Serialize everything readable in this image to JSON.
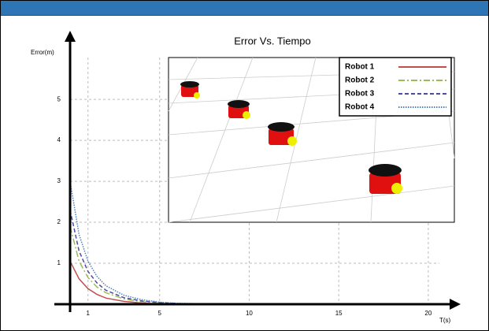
{
  "chart_data": {
    "type": "line",
    "title": "Error Vs. Tiempo",
    "y_label": "Error(m)",
    "x_label": "T(s)",
    "x": [
      0,
      0.5,
      1,
      1.5,
      2,
      3,
      4,
      5,
      6,
      8,
      10
    ],
    "series": [
      {
        "name": "Robot 1",
        "color": "#c0504d",
        "style": "solid",
        "values": [
          1.05,
          0.62,
          0.38,
          0.24,
          0.15,
          0.07,
          0.03,
          0.01,
          0,
          0,
          0
        ]
      },
      {
        "name": "Robot 2",
        "color": "#9bbb59",
        "style": "dashdot",
        "values": [
          1.9,
          1.05,
          0.65,
          0.42,
          0.28,
          0.13,
          0.06,
          0.03,
          0.01,
          0,
          0
        ]
      },
      {
        "name": "Robot 3",
        "color": "#4b4ba0",
        "style": "dashed",
        "values": [
          2.3,
          1.3,
          0.8,
          0.52,
          0.34,
          0.16,
          0.08,
          0.04,
          0.02,
          0,
          0
        ]
      },
      {
        "name": "Robot 4",
        "color": "#4f81bd",
        "style": "dotted",
        "values": [
          3.0,
          1.7,
          1.05,
          0.68,
          0.45,
          0.22,
          0.11,
          0.05,
          0.02,
          0.01,
          0
        ]
      }
    ],
    "xlim": [
      0,
      21.5
    ],
    "ylim": [
      0,
      6.6
    ],
    "xticks": [
      1,
      5,
      10,
      15,
      20
    ],
    "yticks": [
      1,
      2,
      3,
      4,
      5
    ],
    "grid": true
  }
}
